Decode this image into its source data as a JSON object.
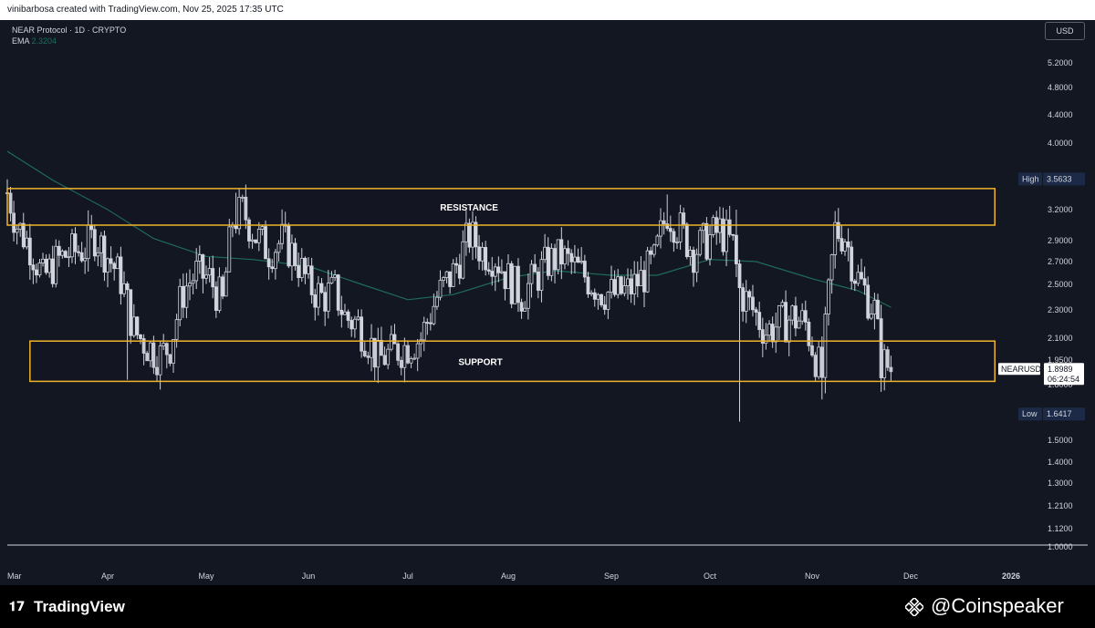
{
  "header": {
    "attribution": "vinibarbosa created with TradingView.com, Nov 25, 2025 17:35 UTC"
  },
  "legend": {
    "symbol_line": "NEAR Protocol · 1D · CRYPTO",
    "ema_label": "EMA",
    "ema_value": "2.3204"
  },
  "currency_button": "USD",
  "footer": {
    "tradingview_brand": "TradingView",
    "coinspeaker_brand": "@Coinspeaker"
  },
  "colors": {
    "background": "#131722",
    "candle": "#d1d4dc",
    "zone_border": "#f0b429",
    "ema": "#1f6b5a",
    "axis_text": "#d1d4dc"
  },
  "chart_data": {
    "type": "candlestick",
    "symbol": "NEARUSD",
    "timeframe": "1D",
    "scale": "log",
    "ylim": [
      1.0,
      5.8
    ],
    "y_ticks": [
      "5.2000",
      "4.8000",
      "4.4000",
      "4.0000",
      "3.6000",
      "3.2000",
      "2.9000",
      "2.7000",
      "2.5000",
      "2.3000",
      "2.1000",
      "1.9500",
      "1.8000",
      "1.5000",
      "1.4000",
      "1.3000",
      "1.2100",
      "1.1200",
      "1.0000"
    ],
    "x_ticks": [
      "Mar",
      "Apr",
      "May",
      "Jun",
      "Jul",
      "Aug",
      "Sep",
      "Oct",
      "Nov",
      "Dec",
      "2026"
    ],
    "x_tick_dates": [
      "2025-03-01",
      "2025-04-01",
      "2025-05-01",
      "2025-06-01",
      "2025-07-01",
      "2025-08-01",
      "2025-09-01",
      "2025-10-01",
      "2025-11-01",
      "2025-12-01",
      "2026-01-01"
    ],
    "annotations": [
      {
        "label": "RESISTANCE",
        "type": "zone",
        "y_top": 3.45,
        "y_bottom": 3.05,
        "date_start": "2025-03-01",
        "date_end": "2025-12-27"
      },
      {
        "label": "SUPPORT",
        "type": "zone",
        "y_top": 2.08,
        "y_bottom": 1.82,
        "date_start": "2025-03-08",
        "date_end": "2025-12-27"
      }
    ],
    "markers": {
      "high": {
        "label": "High",
        "value": "3.5633"
      },
      "low": {
        "label": "Low",
        "value": "1.6417"
      },
      "last": {
        "label": "NEARUSD",
        "value": "1.8989",
        "countdown": "06:24:54"
      }
    },
    "ema": {
      "name": "EMA",
      "value": 2.3204,
      "points": [
        [
          "2025-03-01",
          3.9
        ],
        [
          "2025-03-15",
          3.55
        ],
        [
          "2025-04-01",
          3.2
        ],
        [
          "2025-04-15",
          2.92
        ],
        [
          "2025-05-01",
          2.75
        ],
        [
          "2025-05-15",
          2.72
        ],
        [
          "2025-06-01",
          2.66
        ],
        [
          "2025-06-15",
          2.52
        ],
        [
          "2025-07-01",
          2.38
        ],
        [
          "2025-07-15",
          2.42
        ],
        [
          "2025-08-01",
          2.56
        ],
        [
          "2025-08-15",
          2.62
        ],
        [
          "2025-09-01",
          2.58
        ],
        [
          "2025-09-15",
          2.58
        ],
        [
          "2025-10-01",
          2.72
        ],
        [
          "2025-10-15",
          2.7
        ],
        [
          "2025-11-01",
          2.55
        ],
        [
          "2025-11-15",
          2.45
        ],
        [
          "2025-11-25",
          2.3204
        ]
      ]
    },
    "close_path": [
      [
        "2025-03-01",
        3.4
      ],
      [
        "2025-03-04",
        3.05
      ],
      [
        "2025-03-08",
        2.85
      ],
      [
        "2025-03-12",
        2.55
      ],
      [
        "2025-03-16",
        2.7
      ],
      [
        "2025-03-20",
        2.78
      ],
      [
        "2025-03-25",
        2.82
      ],
      [
        "2025-03-28",
        2.95
      ],
      [
        "2025-04-01",
        2.75
      ],
      [
        "2025-04-05",
        2.55
      ],
      [
        "2025-04-09",
        2.15
      ],
      [
        "2025-04-13",
        2.05
      ],
      [
        "2025-04-17",
        1.98
      ],
      [
        "2025-04-20",
        2.05
      ],
      [
        "2025-04-24",
        2.45
      ],
      [
        "2025-04-28",
        2.6
      ],
      [
        "2025-05-02",
        2.55
      ],
      [
        "2025-05-06",
        2.35
      ],
      [
        "2025-05-09",
        3.1
      ],
      [
        "2025-05-12",
        3.2
      ],
      [
        "2025-05-16",
        2.95
      ],
      [
        "2025-05-20",
        2.8
      ],
      [
        "2025-05-24",
        2.9
      ],
      [
        "2025-05-28",
        2.75
      ],
      [
        "2025-06-01",
        2.5
      ],
      [
        "2025-06-05",
        2.4
      ],
      [
        "2025-06-09",
        2.45
      ],
      [
        "2025-06-12",
        2.25
      ],
      [
        "2025-06-16",
        2.2
      ],
      [
        "2025-06-20",
        2.05
      ],
      [
        "2025-06-22",
        1.95
      ],
      [
        "2025-06-26",
        2.0
      ],
      [
        "2025-07-01",
        2.05
      ],
      [
        "2025-07-05",
        2.1
      ],
      [
        "2025-07-10",
        2.4
      ],
      [
        "2025-07-15",
        2.6
      ],
      [
        "2025-07-20",
        2.95
      ],
      [
        "2025-07-24",
        2.8
      ],
      [
        "2025-07-28",
        2.75
      ],
      [
        "2025-08-01",
        2.55
      ],
      [
        "2025-08-05",
        2.42
      ],
      [
        "2025-08-09",
        2.55
      ],
      [
        "2025-08-13",
        2.7
      ],
      [
        "2025-08-17",
        2.75
      ],
      [
        "2025-08-21",
        2.65
      ],
      [
        "2025-08-25",
        2.55
      ],
      [
        "2025-08-29",
        2.45
      ],
      [
        "2025-09-02",
        2.42
      ],
      [
        "2025-09-06",
        2.45
      ],
      [
        "2025-09-10",
        2.55
      ],
      [
        "2025-09-14",
        2.7
      ],
      [
        "2025-09-18",
        3.2
      ],
      [
        "2025-09-22",
        3.0
      ],
      [
        "2025-09-26",
        2.8
      ],
      [
        "2025-09-30",
        2.9
      ],
      [
        "2025-10-04",
        3.0
      ],
      [
        "2025-10-08",
        2.85
      ],
      [
        "2025-10-10",
        2.45
      ],
      [
        "2025-10-14",
        2.3
      ],
      [
        "2025-10-18",
        2.15
      ],
      [
        "2025-10-22",
        2.2
      ],
      [
        "2025-10-26",
        2.25
      ],
      [
        "2025-10-30",
        2.2
      ],
      [
        "2025-11-02",
        1.98
      ],
      [
        "2025-11-04",
        1.85
      ],
      [
        "2025-11-06",
        2.4
      ],
      [
        "2025-11-08",
        3.0
      ],
      [
        "2025-11-11",
        2.95
      ],
      [
        "2025-11-14",
        2.6
      ],
      [
        "2025-11-17",
        2.45
      ],
      [
        "2025-11-20",
        2.3
      ],
      [
        "2025-11-22",
        1.95
      ],
      [
        "2025-11-25",
        1.8989
      ]
    ]
  }
}
